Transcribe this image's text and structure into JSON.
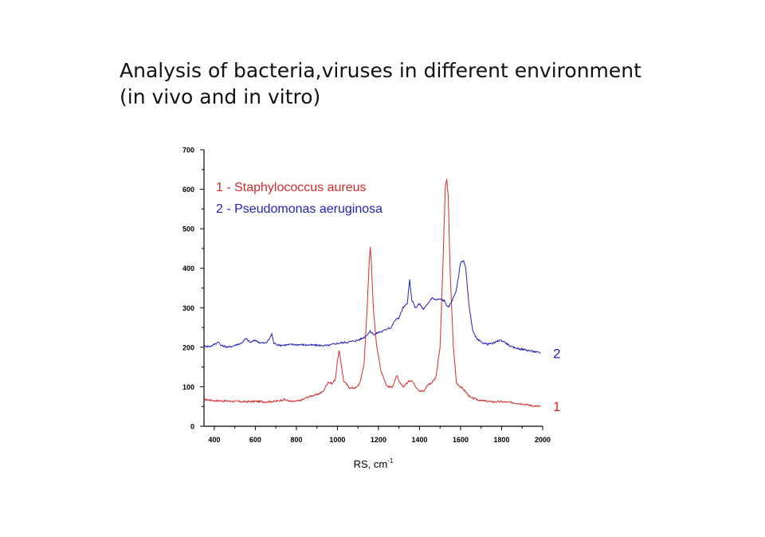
{
  "slide": {
    "title_line1": "Analysis of bacteria,viruses in different environment",
    "title_line2": "(in vivo and in vitro)"
  },
  "chart_data": {
    "type": "line",
    "xlabel": "RS, cm",
    "xlabel_superscript": "-1",
    "ylabel": "",
    "xlim": [
      350,
      2000
    ],
    "ylim": [
      0,
      700
    ],
    "x_ticks": [
      400,
      600,
      800,
      1000,
      1200,
      1400,
      1600,
      1800,
      2000
    ],
    "y_ticks": [
      0,
      100,
      200,
      300,
      400,
      500,
      600,
      700
    ],
    "legend": {
      "placement": "top-left",
      "entries": [
        "1 - Staphylococcus aureus",
        "2 - Pseudomonas aeruginosa"
      ]
    },
    "series": [
      {
        "label": "1",
        "color": "#d42a2a",
        "points": [
          [
            350,
            68
          ],
          [
            400,
            65
          ],
          [
            450,
            64
          ],
          [
            500,
            63
          ],
          [
            550,
            62
          ],
          [
            600,
            63
          ],
          [
            650,
            62
          ],
          [
            700,
            63
          ],
          [
            740,
            68
          ],
          [
            780,
            62
          ],
          [
            820,
            65
          ],
          [
            860,
            75
          ],
          [
            900,
            80
          ],
          [
            930,
            88
          ],
          [
            955,
            112
          ],
          [
            975,
            108
          ],
          [
            990,
            120
          ],
          [
            1000,
            165
          ],
          [
            1008,
            190
          ],
          [
            1015,
            170
          ],
          [
            1030,
            115
          ],
          [
            1060,
            97
          ],
          [
            1090,
            97
          ],
          [
            1110,
            110
          ],
          [
            1130,
            160
          ],
          [
            1145,
            300
          ],
          [
            1155,
            420
          ],
          [
            1160,
            452
          ],
          [
            1165,
            420
          ],
          [
            1175,
            300
          ],
          [
            1190,
            210
          ],
          [
            1210,
            145
          ],
          [
            1240,
            102
          ],
          [
            1265,
            98
          ],
          [
            1280,
            115
          ],
          [
            1290,
            130
          ],
          [
            1300,
            112
          ],
          [
            1320,
            100
          ],
          [
            1340,
            110
          ],
          [
            1360,
            118
          ],
          [
            1380,
            102
          ],
          [
            1400,
            90
          ],
          [
            1420,
            88
          ],
          [
            1440,
            105
          ],
          [
            1460,
            110
          ],
          [
            1480,
            125
          ],
          [
            1500,
            200
          ],
          [
            1515,
            420
          ],
          [
            1525,
            600
          ],
          [
            1532,
            628
          ],
          [
            1540,
            580
          ],
          [
            1550,
            380
          ],
          [
            1565,
            200
          ],
          [
            1580,
            110
          ],
          [
            1600,
            100
          ],
          [
            1620,
            90
          ],
          [
            1650,
            72
          ],
          [
            1700,
            65
          ],
          [
            1750,
            62
          ],
          [
            1800,
            62
          ],
          [
            1850,
            60
          ],
          [
            1900,
            57
          ],
          [
            1950,
            52
          ],
          [
            1990,
            50
          ]
        ]
      },
      {
        "label": "2",
        "color": "#2222b8",
        "points": [
          [
            350,
            203
          ],
          [
            380,
            202
          ],
          [
            410,
            210
          ],
          [
            420,
            215
          ],
          [
            430,
            205
          ],
          [
            470,
            200
          ],
          [
            500,
            205
          ],
          [
            530,
            210
          ],
          [
            555,
            222
          ],
          [
            575,
            212
          ],
          [
            600,
            218
          ],
          [
            620,
            212
          ],
          [
            650,
            210
          ],
          [
            670,
            222
          ],
          [
            680,
            235
          ],
          [
            690,
            210
          ],
          [
            720,
            205
          ],
          [
            780,
            207
          ],
          [
            850,
            206
          ],
          [
            900,
            205
          ],
          [
            950,
            204
          ],
          [
            1000,
            210
          ],
          [
            1050,
            213
          ],
          [
            1100,
            218
          ],
          [
            1130,
            225
          ],
          [
            1160,
            240
          ],
          [
            1180,
            232
          ],
          [
            1200,
            238
          ],
          [
            1220,
            240
          ],
          [
            1250,
            250
          ],
          [
            1260,
            248
          ],
          [
            1280,
            268
          ],
          [
            1300,
            275
          ],
          [
            1320,
            300
          ],
          [
            1340,
            310
          ],
          [
            1352,
            370
          ],
          [
            1362,
            320
          ],
          [
            1380,
            300
          ],
          [
            1400,
            310
          ],
          [
            1420,
            295
          ],
          [
            1440,
            310
          ],
          [
            1460,
            325
          ],
          [
            1480,
            320
          ],
          [
            1500,
            322
          ],
          [
            1520,
            318
          ],
          [
            1540,
            300
          ],
          [
            1560,
            320
          ],
          [
            1580,
            345
          ],
          [
            1600,
            415
          ],
          [
            1615,
            420
          ],
          [
            1625,
            400
          ],
          [
            1640,
            310
          ],
          [
            1660,
            240
          ],
          [
            1680,
            220
          ],
          [
            1700,
            213
          ],
          [
            1730,
            208
          ],
          [
            1760,
            210
          ],
          [
            1790,
            218
          ],
          [
            1810,
            215
          ],
          [
            1850,
            200
          ],
          [
            1900,
            195
          ],
          [
            1950,
            190
          ],
          [
            1990,
            185
          ]
        ]
      }
    ],
    "series_end_labels": [
      "2",
      "1"
    ]
  }
}
